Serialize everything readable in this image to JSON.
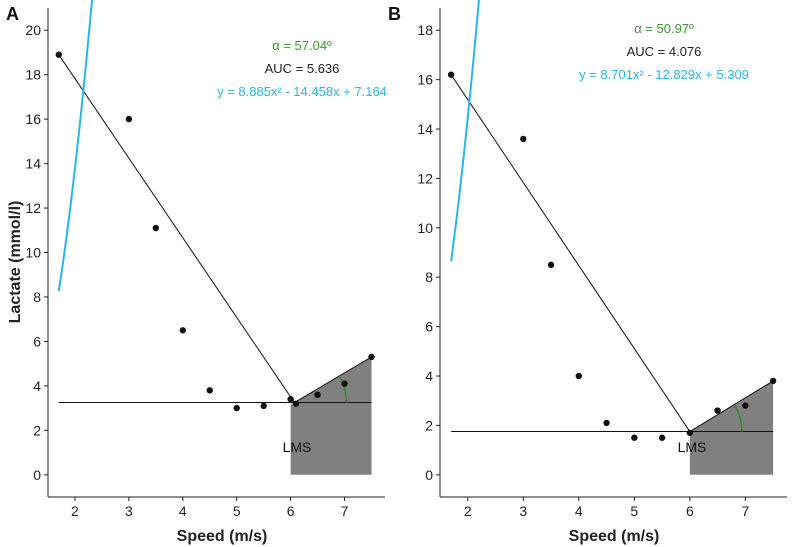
{
  "chart_data": [
    {
      "type": "scatter",
      "panel_label": "A",
      "xlabel": "Speed (m/s)",
      "ylabel": "Lactate (mmol/l)",
      "xlim": [
        1.5,
        7.75
      ],
      "ylim": [
        -1.0,
        21.0
      ],
      "x_ticks": [
        "2",
        "3",
        "4",
        "5",
        "6",
        "7"
      ],
      "y_ticks": [
        "0",
        "2",
        "4",
        "6",
        "8",
        "10",
        "12",
        "14",
        "16",
        "18",
        "20"
      ],
      "points": [
        {
          "x": 1.7,
          "y": 18.9
        },
        {
          "x": 3.0,
          "y": 16.0
        },
        {
          "x": 3.5,
          "y": 11.1
        },
        {
          "x": 4.0,
          "y": 6.5
        },
        {
          "x": 4.5,
          "y": 3.8
        },
        {
          "x": 5.0,
          "y": 3.0
        },
        {
          "x": 5.5,
          "y": 3.1
        },
        {
          "x": 6.0,
          "y": 3.4
        },
        {
          "x": 6.1,
          "y": 3.2
        },
        {
          "x": 6.5,
          "y": 3.6
        },
        {
          "x": 7.0,
          "y": 4.1
        },
        {
          "x": 7.5,
          "y": 5.3
        }
      ],
      "fit": {
        "a": 8.885,
        "b": -14.458,
        "c": 7.164,
        "x_range": [
          1.7,
          7.5
        ],
        "color": "#29b6e8"
      },
      "lms": {
        "x": 6.07,
        "y": 3.25,
        "label": "LMS"
      },
      "hline": {
        "y": 3.25,
        "x_range": [
          1.7,
          7.5
        ]
      },
      "line_to_first": {
        "x0": 1.7,
        "y0": 18.9
      },
      "line_to_last": {
        "x1": 7.5,
        "y1": 5.3
      },
      "auc_area": {
        "x_range": [
          6.0,
          7.5
        ],
        "color": "#808080"
      },
      "angle_arc_color": "#2e8b2e",
      "annotations": {
        "alpha": "α = 57.04º",
        "auc": "AUC = 5.636",
        "equation": "y = 8.885x² - 14.458x + 7.164"
      },
      "colors": {
        "alpha": "#3a9a2e",
        "auc": "#222222",
        "equation": "#29b6e8"
      }
    },
    {
      "type": "scatter",
      "panel_label": "B",
      "xlabel": "Speed (m/s)",
      "ylabel": "",
      "xlim": [
        1.5,
        7.75
      ],
      "ylim": [
        -0.9,
        18.9
      ],
      "x_ticks": [
        "2",
        "3",
        "4",
        "5",
        "6",
        "7"
      ],
      "y_ticks": [
        "0",
        "2",
        "4",
        "6",
        "8",
        "10",
        "12",
        "14",
        "16",
        "18"
      ],
      "points": [
        {
          "x": 1.7,
          "y": 16.2
        },
        {
          "x": 3.0,
          "y": 13.6
        },
        {
          "x": 3.5,
          "y": 8.5
        },
        {
          "x": 4.0,
          "y": 4.0
        },
        {
          "x": 4.5,
          "y": 2.1
        },
        {
          "x": 5.0,
          "y": 1.5
        },
        {
          "x": 5.5,
          "y": 1.5
        },
        {
          "x": 6.0,
          "y": 1.7
        },
        {
          "x": 6.5,
          "y": 2.6
        },
        {
          "x": 7.0,
          "y": 2.8
        },
        {
          "x": 7.5,
          "y": 3.8
        }
      ],
      "fit": {
        "a": 8.701,
        "b": -12.829,
        "c": 5.309,
        "x_range": [
          1.7,
          7.5
        ],
        "color": "#29b6e8"
      },
      "lms": {
        "x": 6.0,
        "y": 1.75,
        "label": "LMS"
      },
      "hline": {
        "y": 1.75,
        "x_range": [
          1.7,
          7.5
        ]
      },
      "line_to_first": {
        "x0": 1.7,
        "y0": 16.2
      },
      "line_to_last": {
        "x1": 7.5,
        "y1": 3.8
      },
      "auc_area": {
        "x_range": [
          6.0,
          7.5
        ],
        "color": "#808080"
      },
      "angle_arc_color": "#2e8b2e",
      "annotations": {
        "alpha": "α = 50.97º",
        "auc": "AUC = 4.076",
        "equation": "y = 8.701x² - 12.829x + 5.309"
      },
      "colors": {
        "alpha": "#3a9a2e",
        "auc": "#222222",
        "equation": "#29b6e8"
      }
    }
  ]
}
